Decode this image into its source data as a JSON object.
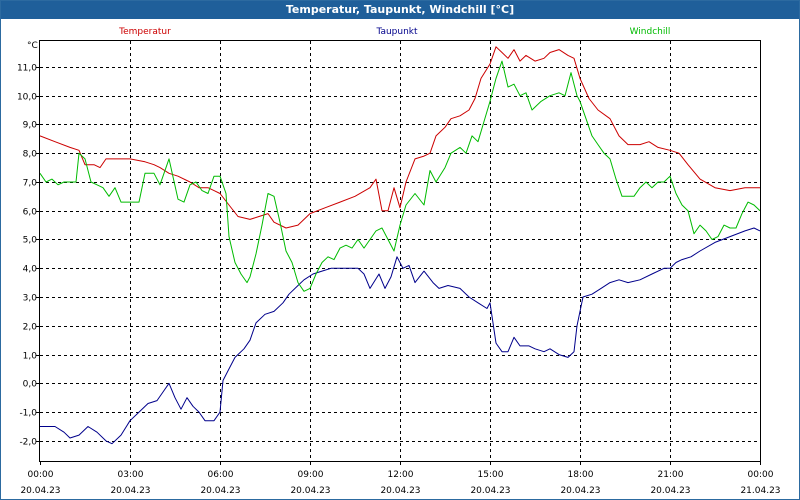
{
  "window": {
    "title": "Temperatur, Taupunkt, Windchill [°C]"
  },
  "chart_data": {
    "type": "line",
    "title": "Temperatur, Taupunkt, Windchill [°C]",
    "ylabel": "°C",
    "ylim": [
      -2.7,
      11.9
    ],
    "xlim": [
      0,
      24
    ],
    "y_ticks": [
      {
        "value": -2.0,
        "label": "-2,0"
      },
      {
        "value": -1.0,
        "label": "-1,0"
      },
      {
        "value": 0.0,
        "label": "0,0"
      },
      {
        "value": 1.0,
        "label": "1,0"
      },
      {
        "value": 2.0,
        "label": "2,0"
      },
      {
        "value": 3.0,
        "label": "3,0"
      },
      {
        "value": 4.0,
        "label": "4,0"
      },
      {
        "value": 5.0,
        "label": "5,0"
      },
      {
        "value": 6.0,
        "label": "6,0"
      },
      {
        "value": 7.0,
        "label": "7,0"
      },
      {
        "value": 8.0,
        "label": "8,0"
      },
      {
        "value": 9.0,
        "label": "9,0"
      },
      {
        "value": 10.0,
        "label": "10,0"
      },
      {
        "value": 11.0,
        "label": "11,0"
      }
    ],
    "x_ticks": [
      {
        "value": 0,
        "time": "00:00",
        "date": "20.04.23"
      },
      {
        "value": 3,
        "time": "03:00",
        "date": "20.04.23"
      },
      {
        "value": 6,
        "time": "06:00",
        "date": "20.04.23"
      },
      {
        "value": 9,
        "time": "09:00",
        "date": "20.04.23"
      },
      {
        "value": 12,
        "time": "12:00",
        "date": "20.04.23"
      },
      {
        "value": 15,
        "time": "15:00",
        "date": "20.04.23"
      },
      {
        "value": 18,
        "time": "18:00",
        "date": "20.04.23"
      },
      {
        "value": 21,
        "time": "21:00",
        "date": "20.04.23"
      },
      {
        "value": 24,
        "time": "00:00",
        "date": "21.04.23"
      }
    ],
    "grid": true,
    "series": [
      {
        "name": "Temperatur",
        "color": "#cc0000",
        "points": [
          [
            0,
            8.6
          ],
          [
            0.5,
            8.4
          ],
          [
            1,
            8.2
          ],
          [
            1.3,
            8.1
          ],
          [
            1.5,
            7.6
          ],
          [
            1.8,
            7.6
          ],
          [
            2,
            7.5
          ],
          [
            2.2,
            7.8
          ],
          [
            2.5,
            7.8
          ],
          [
            3,
            7.8
          ],
          [
            3.5,
            7.7
          ],
          [
            3.8,
            7.6
          ],
          [
            4,
            7.5
          ],
          [
            4.3,
            7.3
          ],
          [
            4.6,
            7.2
          ],
          [
            5,
            7.0
          ],
          [
            5.3,
            6.8
          ],
          [
            5.6,
            6.8
          ],
          [
            5.8,
            6.7
          ],
          [
            6,
            6.6
          ],
          [
            6.3,
            6.2
          ],
          [
            6.6,
            5.8
          ],
          [
            7,
            5.7
          ],
          [
            7.3,
            5.8
          ],
          [
            7.6,
            5.9
          ],
          [
            7.8,
            5.6
          ],
          [
            8.2,
            5.4
          ],
          [
            8.6,
            5.5
          ],
          [
            9,
            5.9
          ],
          [
            9.5,
            6.1
          ],
          [
            10,
            6.3
          ],
          [
            10.5,
            6.5
          ],
          [
            11,
            6.8
          ],
          [
            11.2,
            7.1
          ],
          [
            11.4,
            6.0
          ],
          [
            11.6,
            6.0
          ],
          [
            11.8,
            6.8
          ],
          [
            12,
            6.1
          ],
          [
            12.2,
            7.0
          ],
          [
            12.5,
            7.8
          ],
          [
            12.8,
            7.9
          ],
          [
            13,
            8.0
          ],
          [
            13.2,
            8.6
          ],
          [
            13.5,
            8.9
          ],
          [
            13.7,
            9.2
          ],
          [
            14,
            9.3
          ],
          [
            14.3,
            9.5
          ],
          [
            14.5,
            9.9
          ],
          [
            14.7,
            10.6
          ],
          [
            15,
            11.1
          ],
          [
            15.2,
            11.7
          ],
          [
            15.4,
            11.5
          ],
          [
            15.6,
            11.3
          ],
          [
            15.8,
            11.6
          ],
          [
            16,
            11.2
          ],
          [
            16.2,
            11.4
          ],
          [
            16.5,
            11.2
          ],
          [
            16.8,
            11.3
          ],
          [
            17,
            11.5
          ],
          [
            17.3,
            11.6
          ],
          [
            17.6,
            11.4
          ],
          [
            17.8,
            11.3
          ],
          [
            18,
            10.6
          ],
          [
            18.3,
            9.9
          ],
          [
            18.6,
            9.5
          ],
          [
            19,
            9.2
          ],
          [
            19.3,
            8.6
          ],
          [
            19.6,
            8.3
          ],
          [
            20,
            8.3
          ],
          [
            20.3,
            8.4
          ],
          [
            20.6,
            8.2
          ],
          [
            21,
            8.1
          ],
          [
            21.3,
            8.0
          ],
          [
            21.6,
            7.6
          ],
          [
            22,
            7.1
          ],
          [
            22.5,
            6.8
          ],
          [
            23,
            6.7
          ],
          [
            23.5,
            6.8
          ],
          [
            24,
            6.8
          ]
        ]
      },
      {
        "name": "Taupunkt",
        "color": "#00008b",
        "points": [
          [
            0,
            -1.5
          ],
          [
            0.5,
            -1.5
          ],
          [
            0.8,
            -1.7
          ],
          [
            1,
            -1.9
          ],
          [
            1.3,
            -1.8
          ],
          [
            1.6,
            -1.5
          ],
          [
            1.9,
            -1.7
          ],
          [
            2.2,
            -2.0
          ],
          [
            2.4,
            -2.1
          ],
          [
            2.7,
            -1.8
          ],
          [
            3,
            -1.3
          ],
          [
            3.3,
            -1.0
          ],
          [
            3.6,
            -0.7
          ],
          [
            3.9,
            -0.6
          ],
          [
            4.1,
            -0.3
          ],
          [
            4.3,
            0.0
          ],
          [
            4.5,
            -0.5
          ],
          [
            4.7,
            -0.9
          ],
          [
            4.9,
            -0.5
          ],
          [
            5.1,
            -0.8
          ],
          [
            5.3,
            -1.0
          ],
          [
            5.5,
            -1.3
          ],
          [
            5.8,
            -1.3
          ],
          [
            6,
            -1.0
          ],
          [
            6.1,
            0.1
          ],
          [
            6.3,
            0.5
          ],
          [
            6.5,
            0.9
          ],
          [
            6.8,
            1.2
          ],
          [
            7,
            1.5
          ],
          [
            7.2,
            2.1
          ],
          [
            7.5,
            2.4
          ],
          [
            7.8,
            2.5
          ],
          [
            8.1,
            2.8
          ],
          [
            8.3,
            3.1
          ],
          [
            8.6,
            3.4
          ],
          [
            8.8,
            3.6
          ],
          [
            9.1,
            3.8
          ],
          [
            9.4,
            3.9
          ],
          [
            9.7,
            4.0
          ],
          [
            10,
            4.0
          ],
          [
            10.3,
            4.0
          ],
          [
            10.6,
            4.0
          ],
          [
            10.8,
            3.8
          ],
          [
            11,
            3.3
          ],
          [
            11.3,
            3.8
          ],
          [
            11.5,
            3.3
          ],
          [
            11.7,
            3.7
          ],
          [
            11.9,
            4.4
          ],
          [
            12.1,
            4.0
          ],
          [
            12.3,
            4.1
          ],
          [
            12.5,
            3.5
          ],
          [
            12.8,
            3.9
          ],
          [
            13.1,
            3.5
          ],
          [
            13.3,
            3.3
          ],
          [
            13.6,
            3.4
          ],
          [
            14,
            3.3
          ],
          [
            14.3,
            3.0
          ],
          [
            14.6,
            2.8
          ],
          [
            14.9,
            2.6
          ],
          [
            15,
            2.8
          ],
          [
            15.2,
            1.4
          ],
          [
            15.4,
            1.1
          ],
          [
            15.6,
            1.1
          ],
          [
            15.8,
            1.6
          ],
          [
            16,
            1.3
          ],
          [
            16.3,
            1.3
          ],
          [
            16.5,
            1.2
          ],
          [
            16.8,
            1.1
          ],
          [
            17,
            1.2
          ],
          [
            17.3,
            1.0
          ],
          [
            17.6,
            0.9
          ],
          [
            17.8,
            1.1
          ],
          [
            17.9,
            2.0
          ],
          [
            18.1,
            3.0
          ],
          [
            18.4,
            3.1
          ],
          [
            18.7,
            3.3
          ],
          [
            19,
            3.5
          ],
          [
            19.3,
            3.6
          ],
          [
            19.6,
            3.5
          ],
          [
            20,
            3.6
          ],
          [
            20.4,
            3.8
          ],
          [
            20.8,
            4.0
          ],
          [
            21,
            4.0
          ],
          [
            21.2,
            4.2
          ],
          [
            21.4,
            4.3
          ],
          [
            21.7,
            4.4
          ],
          [
            22,
            4.6
          ],
          [
            22.5,
            4.9
          ],
          [
            23,
            5.1
          ],
          [
            23.5,
            5.3
          ],
          [
            23.8,
            5.4
          ],
          [
            24,
            5.3
          ]
        ]
      },
      {
        "name": "Windchill",
        "color": "#00bb00",
        "points": [
          [
            0,
            7.3
          ],
          [
            0.2,
            7.0
          ],
          [
            0.4,
            7.1
          ],
          [
            0.6,
            6.9
          ],
          [
            0.8,
            7.0
          ],
          [
            1,
            7.0
          ],
          [
            1.2,
            7.0
          ],
          [
            1.3,
            8.0
          ],
          [
            1.5,
            7.8
          ],
          [
            1.7,
            7.0
          ],
          [
            1.9,
            6.9
          ],
          [
            2.1,
            6.8
          ],
          [
            2.3,
            6.5
          ],
          [
            2.5,
            6.8
          ],
          [
            2.7,
            6.3
          ],
          [
            3,
            6.3
          ],
          [
            3.3,
            6.3
          ],
          [
            3.5,
            7.3
          ],
          [
            3.8,
            7.3
          ],
          [
            4,
            6.9
          ],
          [
            4.3,
            7.8
          ],
          [
            4.6,
            6.4
          ],
          [
            4.8,
            6.3
          ],
          [
            5,
            6.9
          ],
          [
            5.2,
            7.0
          ],
          [
            5.4,
            6.7
          ],
          [
            5.6,
            6.6
          ],
          [
            5.8,
            7.2
          ],
          [
            6,
            7.2
          ],
          [
            6.2,
            6.6
          ],
          [
            6.3,
            5.1
          ],
          [
            6.5,
            4.2
          ],
          [
            6.7,
            3.8
          ],
          [
            6.9,
            3.5
          ],
          [
            7,
            3.7
          ],
          [
            7.2,
            4.5
          ],
          [
            7.4,
            5.5
          ],
          [
            7.6,
            6.6
          ],
          [
            7.8,
            6.5
          ],
          [
            8,
            5.6
          ],
          [
            8.2,
            4.6
          ],
          [
            8.4,
            4.2
          ],
          [
            8.6,
            3.5
          ],
          [
            8.8,
            3.2
          ],
          [
            9,
            3.3
          ],
          [
            9.2,
            3.8
          ],
          [
            9.4,
            4.2
          ],
          [
            9.6,
            4.4
          ],
          [
            9.8,
            4.3
          ],
          [
            10,
            4.7
          ],
          [
            10.2,
            4.8
          ],
          [
            10.4,
            4.7
          ],
          [
            10.6,
            5.0
          ],
          [
            10.8,
            4.7
          ],
          [
            11,
            5.0
          ],
          [
            11.2,
            5.3
          ],
          [
            11.4,
            5.4
          ],
          [
            11.6,
            5.0
          ],
          [
            11.8,
            4.6
          ],
          [
            12,
            5.5
          ],
          [
            12.2,
            6.2
          ],
          [
            12.5,
            6.6
          ],
          [
            12.8,
            6.2
          ],
          [
            13,
            7.4
          ],
          [
            13.2,
            7.0
          ],
          [
            13.5,
            7.5
          ],
          [
            13.7,
            8.0
          ],
          [
            14,
            8.2
          ],
          [
            14.2,
            8.0
          ],
          [
            14.4,
            8.6
          ],
          [
            14.6,
            8.4
          ],
          [
            14.8,
            9.1
          ],
          [
            15,
            9.8
          ],
          [
            15.2,
            10.6
          ],
          [
            15.4,
            11.2
          ],
          [
            15.6,
            10.3
          ],
          [
            15.8,
            10.4
          ],
          [
            16,
            10.0
          ],
          [
            16.2,
            10.1
          ],
          [
            16.4,
            9.5
          ],
          [
            16.7,
            9.8
          ],
          [
            17,
            10.0
          ],
          [
            17.3,
            10.1
          ],
          [
            17.5,
            10.0
          ],
          [
            17.7,
            10.8
          ],
          [
            17.9,
            10.0
          ],
          [
            18,
            9.8
          ],
          [
            18.2,
            9.2
          ],
          [
            18.4,
            8.6
          ],
          [
            18.6,
            8.3
          ],
          [
            18.8,
            8.0
          ],
          [
            19,
            7.8
          ],
          [
            19.2,
            7.1
          ],
          [
            19.4,
            6.5
          ],
          [
            19.6,
            6.5
          ],
          [
            19.8,
            6.5
          ],
          [
            20,
            6.8
          ],
          [
            20.2,
            7.0
          ],
          [
            20.4,
            6.8
          ],
          [
            20.6,
            7.0
          ],
          [
            20.8,
            7.0
          ],
          [
            21,
            7.2
          ],
          [
            21.2,
            6.6
          ],
          [
            21.4,
            6.2
          ],
          [
            21.6,
            6.0
          ],
          [
            21.8,
            5.2
          ],
          [
            22,
            5.5
          ],
          [
            22.2,
            5.3
          ],
          [
            22.4,
            5.0
          ],
          [
            22.6,
            5.1
          ],
          [
            22.8,
            5.5
          ],
          [
            23,
            5.4
          ],
          [
            23.2,
            5.4
          ],
          [
            23.4,
            5.9
          ],
          [
            23.6,
            6.3
          ],
          [
            23.8,
            6.2
          ],
          [
            24,
            6.0
          ]
        ]
      }
    ]
  }
}
